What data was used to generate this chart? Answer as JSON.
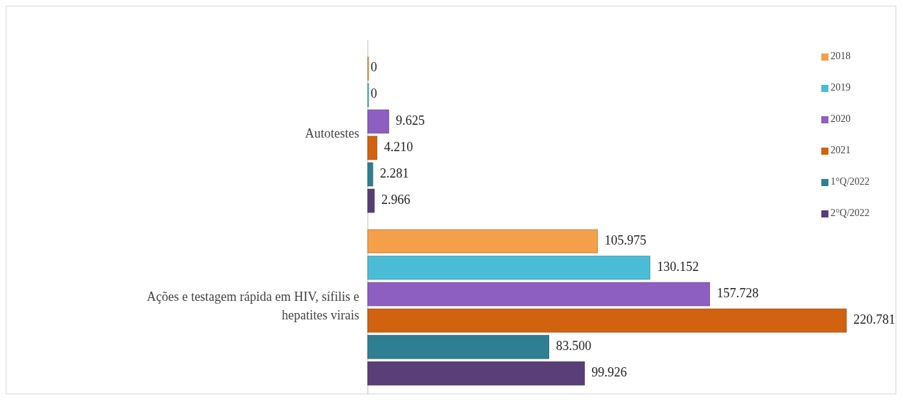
{
  "chart_data": {
    "type": "bar",
    "orientation": "horizontal",
    "categories": [
      "Autotestes",
      "Ações e testagem rápida em HIV, sífilis e hepatites virais"
    ],
    "series": [
      {
        "name": "2018",
        "color": "#f4a04a",
        "values": [
          0,
          105975
        ],
        "value_labels": [
          "0",
          "105.975"
        ]
      },
      {
        "name": "2019",
        "color": "#4bbcd6",
        "values": [
          0,
          130152
        ],
        "value_labels": [
          "0",
          "130.152"
        ]
      },
      {
        "name": "2020",
        "color": "#8d5fc0",
        "values": [
          9625,
          157728
        ],
        "value_labels": [
          "9.625",
          "157.728"
        ]
      },
      {
        "name": "2021",
        "color": "#d1620f",
        "values": [
          4210,
          220781
        ],
        "value_labels": [
          "4.210",
          "220.781"
        ]
      },
      {
        "name": "1°Q/2022",
        "color": "#2f7f93",
        "values": [
          2281,
          83500
        ],
        "value_labels": [
          "2.281",
          "83.500"
        ]
      },
      {
        "name": "2°Q/2022",
        "color": "#5a3e77",
        "values": [
          2966,
          99926
        ],
        "value_labels": [
          "2.966",
          "99.926"
        ]
      }
    ],
    "legend": "right"
  }
}
